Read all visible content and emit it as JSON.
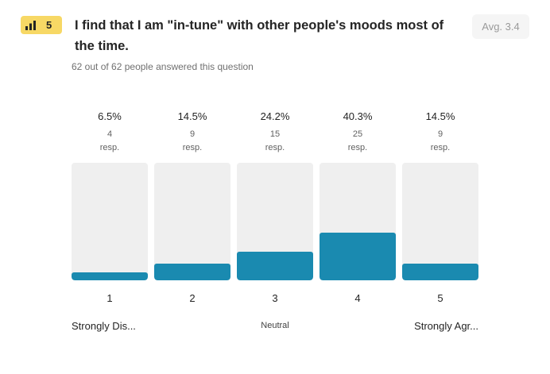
{
  "question": {
    "number": "5",
    "title": "I find that I am \"in-tune\" with other people's moods most of the time.",
    "average": "Avg. 3.4",
    "answered": "62 out of 62 people answered this question"
  },
  "colors": {
    "badge": "#f7d865",
    "bar_fill": "#1a8ab0",
    "bar_track": "#efefef"
  },
  "chart_data": {
    "type": "bar",
    "categories": [
      "1",
      "2",
      "3",
      "4",
      "5"
    ],
    "values": [
      6.5,
      14.5,
      24.2,
      40.3,
      14.5
    ],
    "percent_labels": [
      "6.5%",
      "14.5%",
      "24.2%",
      "40.3%",
      "14.5%"
    ],
    "counts": [
      "4",
      "9",
      "15",
      "25",
      "9"
    ],
    "count_unit": "resp.",
    "ylim": [
      0,
      100
    ],
    "scale_labels": {
      "low": "Strongly Dis...",
      "mid": "Neutral",
      "high": "Strongly Agr..."
    }
  }
}
